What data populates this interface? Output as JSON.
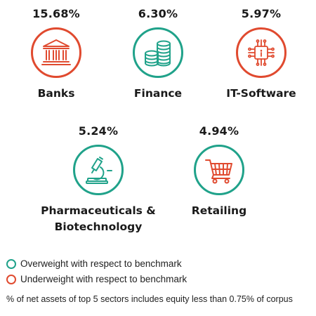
{
  "sectors": [
    {
      "percent": "15.68%",
      "name": "Banks",
      "icon": "bank-icon",
      "status": "underweight"
    },
    {
      "percent": "6.30%",
      "name": "Finance",
      "icon": "coins-icon",
      "status": "overweight"
    },
    {
      "percent": "5.97%",
      "name": "IT-Software",
      "icon": "chip-icon",
      "status": "underweight"
    },
    {
      "percent": "5.24%",
      "name_line1": "Pharmaceuticals &",
      "name_line2": "Biotechnology",
      "icon": "microscope-icon",
      "status": "overweight"
    },
    {
      "percent": "4.94%",
      "name": "Retailing",
      "icon": "shopping-cart-icon",
      "status": "overweight"
    }
  ],
  "legend": {
    "overweight": "Overweight with respect to benchmark",
    "underweight": "Underweight with respect to benchmark"
  },
  "footnote": "% of net assets of top 5 sectors includes equity less than 0.75% of corpus",
  "colors": {
    "overweight": "#20a28a",
    "underweight": "#e04a2f"
  }
}
